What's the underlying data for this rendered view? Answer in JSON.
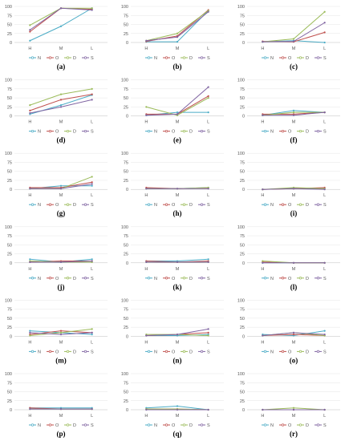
{
  "series_names": [
    "N",
    "O",
    "D",
    "S"
  ],
  "colors": {
    "N": "#4bacc6",
    "O": "#c0504d",
    "D": "#9bbb59",
    "S": "#8064a2"
  },
  "y_ticks": [
    "0",
    "25",
    "50",
    "75",
    "100"
  ],
  "categories": [
    "H",
    "M",
    "L"
  ],
  "chart_data": [
    {
      "type": "line",
      "caption": "(a)",
      "categories": [
        "H",
        "M",
        "L"
      ],
      "ylim": [
        0,
        100
      ],
      "series": [
        {
          "name": "N",
          "values": [
            5,
            45,
            95
          ]
        },
        {
          "name": "O",
          "values": [
            30,
            95,
            92
          ]
        },
        {
          "name": "D",
          "values": [
            48,
            95,
            95
          ]
        },
        {
          "name": "S",
          "values": [
            35,
            95,
            90
          ]
        }
      ]
    },
    {
      "type": "line",
      "caption": "(b)",
      "categories": [
        "H",
        "M",
        "L"
      ],
      "ylim": [
        0,
        100
      ],
      "series": [
        {
          "name": "N",
          "values": [
            2,
            2,
            88
          ]
        },
        {
          "name": "O",
          "values": [
            3,
            18,
            90
          ]
        },
        {
          "name": "D",
          "values": [
            5,
            25,
            88
          ]
        },
        {
          "name": "S",
          "values": [
            5,
            15,
            85
          ]
        }
      ]
    },
    {
      "type": "line",
      "caption": "(c)",
      "categories": [
        "H",
        "M",
        "L"
      ],
      "ylim": [
        0,
        100
      ],
      "series": [
        {
          "name": "N",
          "values": [
            2,
            5,
            0
          ]
        },
        {
          "name": "O",
          "values": [
            3,
            2,
            28
          ]
        },
        {
          "name": "D",
          "values": [
            2,
            10,
            85
          ]
        },
        {
          "name": "S",
          "values": [
            2,
            3,
            55
          ]
        }
      ]
    },
    {
      "type": "line",
      "caption": "(d)",
      "categories": [
        "H",
        "M",
        "L"
      ],
      "ylim": [
        0,
        100
      ],
      "series": [
        {
          "name": "N",
          "values": [
            5,
            30,
            58
          ]
        },
        {
          "name": "O",
          "values": [
            15,
            45,
            60
          ]
        },
        {
          "name": "D",
          "values": [
            30,
            60,
            75
          ]
        },
        {
          "name": "S",
          "values": [
            8,
            25,
            45
          ]
        }
      ]
    },
    {
      "type": "line",
      "caption": "(e)",
      "categories": [
        "H",
        "M",
        "L"
      ],
      "ylim": [
        0,
        100
      ],
      "series": [
        {
          "name": "N",
          "values": [
            2,
            10,
            10
          ]
        },
        {
          "name": "O",
          "values": [
            5,
            5,
            55
          ]
        },
        {
          "name": "D",
          "values": [
            25,
            2,
            50
          ]
        },
        {
          "name": "S",
          "values": [
            2,
            5,
            80
          ]
        }
      ]
    },
    {
      "type": "line",
      "caption": "(f)",
      "categories": [
        "H",
        "M",
        "L"
      ],
      "ylim": [
        0,
        100
      ],
      "series": [
        {
          "name": "N",
          "values": [
            2,
            15,
            10
          ]
        },
        {
          "name": "O",
          "values": [
            5,
            5,
            10
          ]
        },
        {
          "name": "D",
          "values": [
            2,
            10,
            10
          ]
        },
        {
          "name": "S",
          "values": [
            2,
            2,
            10
          ]
        }
      ]
    },
    {
      "type": "line",
      "caption": "(g)",
      "categories": [
        "H",
        "M",
        "L"
      ],
      "ylim": [
        0,
        100
      ],
      "series": [
        {
          "name": "N",
          "values": [
            2,
            10,
            10
          ]
        },
        {
          "name": "O",
          "values": [
            5,
            5,
            20
          ]
        },
        {
          "name": "D",
          "values": [
            2,
            2,
            35
          ]
        },
        {
          "name": "S",
          "values": [
            2,
            2,
            15
          ]
        }
      ]
    },
    {
      "type": "line",
      "caption": "(h)",
      "categories": [
        "H",
        "M",
        "L"
      ],
      "ylim": [
        0,
        100
      ],
      "series": [
        {
          "name": "N",
          "values": [
            2,
            2,
            5
          ]
        },
        {
          "name": "O",
          "values": [
            5,
            2,
            3
          ]
        },
        {
          "name": "D",
          "values": [
            2,
            2,
            5
          ]
        },
        {
          "name": "S",
          "values": [
            2,
            2,
            2
          ]
        }
      ]
    },
    {
      "type": "line",
      "caption": "(i)",
      "categories": [
        "H",
        "M",
        "L"
      ],
      "ylim": [
        0,
        100
      ],
      "series": [
        {
          "name": "N",
          "values": [
            0,
            3,
            2
          ]
        },
        {
          "name": "O",
          "values": [
            0,
            2,
            5
          ]
        },
        {
          "name": "D",
          "values": [
            0,
            5,
            2
          ]
        },
        {
          "name": "S",
          "values": [
            0,
            2,
            0
          ]
        }
      ]
    },
    {
      "type": "line",
      "caption": "(j)",
      "categories": [
        "H",
        "M",
        "L"
      ],
      "ylim": [
        0,
        100
      ],
      "series": [
        {
          "name": "N",
          "values": [
            10,
            2,
            10
          ]
        },
        {
          "name": "O",
          "values": [
            2,
            5,
            5
          ]
        },
        {
          "name": "D",
          "values": [
            5,
            2,
            2
          ]
        },
        {
          "name": "S",
          "values": [
            2,
            2,
            5
          ]
        }
      ]
    },
    {
      "type": "line",
      "caption": "(k)",
      "categories": [
        "H",
        "M",
        "L"
      ],
      "ylim": [
        0,
        100
      ],
      "series": [
        {
          "name": "N",
          "values": [
            5,
            5,
            10
          ]
        },
        {
          "name": "O",
          "values": [
            5,
            2,
            5
          ]
        },
        {
          "name": "D",
          "values": [
            2,
            2,
            2
          ]
        },
        {
          "name": "S",
          "values": [
            2,
            2,
            2
          ]
        }
      ]
    },
    {
      "type": "line",
      "caption": "(l)",
      "categories": [
        "H",
        "M",
        "L"
      ],
      "ylim": [
        0,
        100
      ],
      "series": [
        {
          "name": "N",
          "values": [
            0,
            0,
            0
          ]
        },
        {
          "name": "O",
          "values": [
            2,
            0,
            0
          ]
        },
        {
          "name": "D",
          "values": [
            5,
            0,
            0
          ]
        },
        {
          "name": "S",
          "values": [
            0,
            0,
            0
          ]
        }
      ]
    },
    {
      "type": "line",
      "caption": "(m)",
      "categories": [
        "H",
        "M",
        "L"
      ],
      "ylim": [
        0,
        100
      ],
      "series": [
        {
          "name": "N",
          "values": [
            15,
            10,
            5
          ]
        },
        {
          "name": "O",
          "values": [
            5,
            15,
            10
          ]
        },
        {
          "name": "D",
          "values": [
            2,
            10,
            20
          ]
        },
        {
          "name": "S",
          "values": [
            10,
            5,
            10
          ]
        }
      ]
    },
    {
      "type": "line",
      "caption": "(n)",
      "categories": [
        "H",
        "M",
        "L"
      ],
      "ylim": [
        0,
        100
      ],
      "series": [
        {
          "name": "N",
          "values": [
            2,
            2,
            5
          ]
        },
        {
          "name": "O",
          "values": [
            2,
            5,
            10
          ]
        },
        {
          "name": "D",
          "values": [
            5,
            5,
            2
          ]
        },
        {
          "name": "S",
          "values": [
            2,
            5,
            20
          ]
        }
      ]
    },
    {
      "type": "line",
      "caption": "(o)",
      "categories": [
        "H",
        "M",
        "L"
      ],
      "ylim": [
        0,
        100
      ],
      "series": [
        {
          "name": "N",
          "values": [
            5,
            2,
            15
          ]
        },
        {
          "name": "O",
          "values": [
            2,
            5,
            2
          ]
        },
        {
          "name": "D",
          "values": [
            2,
            10,
            2
          ]
        },
        {
          "name": "S",
          "values": [
            2,
            10,
            5
          ]
        }
      ]
    },
    {
      "type": "line",
      "caption": "(p)",
      "categories": [
        "H",
        "M",
        "L"
      ],
      "ylim": [
        0,
        100
      ],
      "series": [
        {
          "name": "N",
          "values": [
            5,
            5,
            5
          ]
        },
        {
          "name": "O",
          "values": [
            5,
            2,
            2
          ]
        },
        {
          "name": "D",
          "values": [
            2,
            2,
            2
          ]
        },
        {
          "name": "S",
          "values": [
            2,
            2,
            2
          ]
        }
      ]
    },
    {
      "type": "line",
      "caption": "(q)",
      "categories": [
        "H",
        "M",
        "L"
      ],
      "ylim": [
        0,
        100
      ],
      "series": [
        {
          "name": "N",
          "values": [
            5,
            10,
            0
          ]
        },
        {
          "name": "O",
          "values": [
            2,
            2,
            0
          ]
        },
        {
          "name": "D",
          "values": [
            2,
            2,
            0
          ]
        },
        {
          "name": "S",
          "values": [
            0,
            0,
            0
          ]
        }
      ]
    },
    {
      "type": "line",
      "caption": "(r)",
      "categories": [
        "H",
        "M",
        "L"
      ],
      "ylim": [
        0,
        100
      ],
      "series": [
        {
          "name": "N",
          "values": [
            0,
            0,
            0
          ]
        },
        {
          "name": "O",
          "values": [
            0,
            0,
            0
          ]
        },
        {
          "name": "D",
          "values": [
            0,
            5,
            0
          ]
        },
        {
          "name": "S",
          "values": [
            0,
            0,
            0
          ]
        }
      ]
    }
  ]
}
